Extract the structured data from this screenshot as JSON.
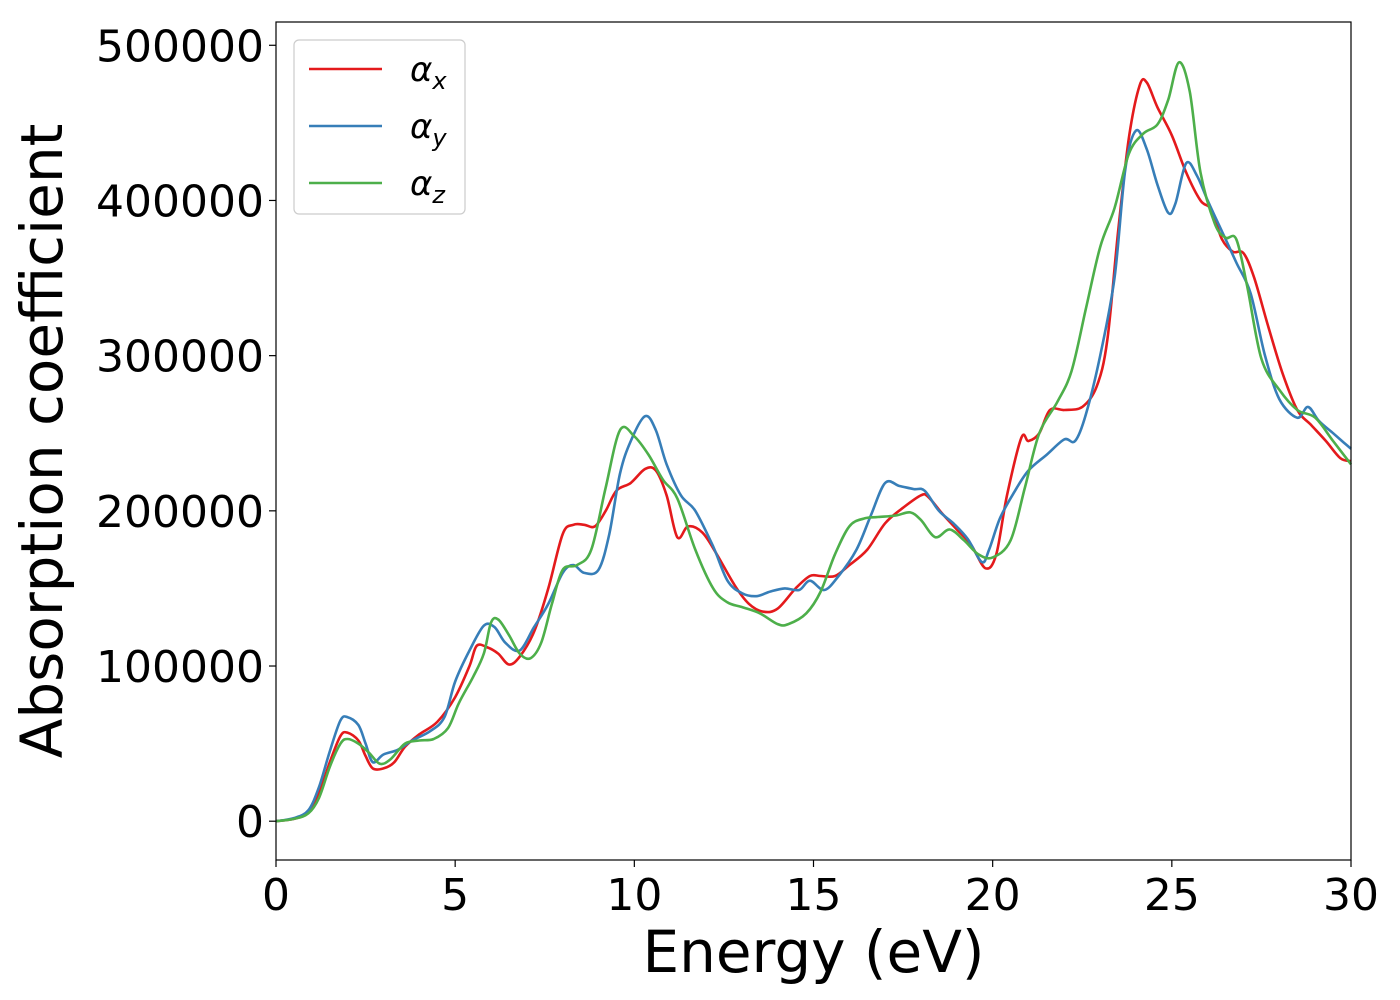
{
  "chart_data": {
    "type": "line",
    "title": "",
    "xlabel": "Energy (eV)",
    "ylabel": "Absorption coefficient",
    "xlim": [
      0,
      30
    ],
    "ylim": [
      -25000,
      515000
    ],
    "xticks": [
      0,
      5,
      10,
      15,
      20,
      25,
      30
    ],
    "yticks": [
      0,
      100000,
      200000,
      300000,
      400000,
      500000
    ],
    "grid": false,
    "legend_position": "top-left",
    "series": [
      {
        "name": "αx",
        "label_base": "α",
        "label_sub": "x",
        "color": "#e41a1c",
        "points": [
          [
            0,
            0
          ],
          [
            0.5,
            1500
          ],
          [
            0.9,
            6000
          ],
          [
            1.2,
            18000
          ],
          [
            1.5,
            38000
          ],
          [
            1.8,
            55000
          ],
          [
            2.0,
            57000
          ],
          [
            2.3,
            52000
          ],
          [
            2.5,
            42000
          ],
          [
            2.7,
            34000
          ],
          [
            3.0,
            34000
          ],
          [
            3.3,
            38000
          ],
          [
            3.6,
            48000
          ],
          [
            4.0,
            56000
          ],
          [
            4.5,
            64000
          ],
          [
            5.0,
            80000
          ],
          [
            5.4,
            100000
          ],
          [
            5.6,
            113000
          ],
          [
            5.9,
            112000
          ],
          [
            6.2,
            108000
          ],
          [
            6.5,
            101000
          ],
          [
            6.8,
            106000
          ],
          [
            7.2,
            122000
          ],
          [
            7.6,
            150000
          ],
          [
            8.0,
            185000
          ],
          [
            8.3,
            191000
          ],
          [
            8.6,
            191000
          ],
          [
            8.9,
            190000
          ],
          [
            9.2,
            200000
          ],
          [
            9.5,
            213000
          ],
          [
            9.9,
            218000
          ],
          [
            10.3,
            227000
          ],
          [
            10.6,
            226000
          ],
          [
            10.9,
            210000
          ],
          [
            11.2,
            183000
          ],
          [
            11.5,
            190000
          ],
          [
            11.9,
            186000
          ],
          [
            12.3,
            172000
          ],
          [
            12.8,
            152000
          ],
          [
            13.2,
            140000
          ],
          [
            13.6,
            135000
          ],
          [
            14.0,
            137000
          ],
          [
            14.5,
            150000
          ],
          [
            14.9,
            158000
          ],
          [
            15.2,
            158000
          ],
          [
            15.6,
            158000
          ],
          [
            16.0,
            165000
          ],
          [
            16.5,
            175000
          ],
          [
            17.0,
            192000
          ],
          [
            17.5,
            202000
          ],
          [
            18.0,
            210000
          ],
          [
            18.2,
            209000
          ],
          [
            18.6,
            198000
          ],
          [
            19.0,
            188000
          ],
          [
            19.4,
            178000
          ],
          [
            19.8,
            163000
          ],
          [
            20.1,
            172000
          ],
          [
            20.4,
            210000
          ],
          [
            20.8,
            247000
          ],
          [
            21.0,
            245000
          ],
          [
            21.3,
            250000
          ],
          [
            21.6,
            265000
          ],
          [
            22.0,
            265000
          ],
          [
            22.5,
            267000
          ],
          [
            22.9,
            280000
          ],
          [
            23.2,
            310000
          ],
          [
            23.5,
            380000
          ],
          [
            23.8,
            440000
          ],
          [
            24.1,
            474000
          ],
          [
            24.3,
            476000
          ],
          [
            24.6,
            460000
          ],
          [
            25.0,
            442000
          ],
          [
            25.4,
            418000
          ],
          [
            25.8,
            400000
          ],
          [
            26.1,
            394000
          ],
          [
            26.4,
            375000
          ],
          [
            26.7,
            367000
          ],
          [
            27.0,
            366000
          ],
          [
            27.3,
            350000
          ],
          [
            27.7,
            318000
          ],
          [
            28.1,
            288000
          ],
          [
            28.5,
            265000
          ],
          [
            28.9,
            255000
          ],
          [
            29.3,
            245000
          ],
          [
            29.7,
            234000
          ],
          [
            30.0,
            232000
          ]
        ]
      },
      {
        "name": "αy",
        "label_base": "α",
        "label_sub": "y",
        "color": "#377eb8",
        "points": [
          [
            0,
            0
          ],
          [
            0.5,
            2000
          ],
          [
            0.9,
            7000
          ],
          [
            1.2,
            22000
          ],
          [
            1.5,
            45000
          ],
          [
            1.8,
            65000
          ],
          [
            2.0,
            67000
          ],
          [
            2.3,
            62000
          ],
          [
            2.5,
            50000
          ],
          [
            2.7,
            38000
          ],
          [
            3.0,
            43000
          ],
          [
            3.4,
            46000
          ],
          [
            3.8,
            52000
          ],
          [
            4.3,
            58000
          ],
          [
            4.7,
            67000
          ],
          [
            5.0,
            90000
          ],
          [
            5.4,
            110000
          ],
          [
            5.8,
            126000
          ],
          [
            6.1,
            125000
          ],
          [
            6.4,
            115000
          ],
          [
            6.8,
            110000
          ],
          [
            7.2,
            125000
          ],
          [
            7.6,
            140000
          ],
          [
            8.0,
            160000
          ],
          [
            8.3,
            165000
          ],
          [
            8.6,
            160000
          ],
          [
            9.0,
            162000
          ],
          [
            9.3,
            185000
          ],
          [
            9.6,
            224000
          ],
          [
            9.9,
            245000
          ],
          [
            10.3,
            261000
          ],
          [
            10.6,
            252000
          ],
          [
            10.9,
            230000
          ],
          [
            11.3,
            210000
          ],
          [
            11.7,
            200000
          ],
          [
            12.2,
            177000
          ],
          [
            12.6,
            155000
          ],
          [
            13.0,
            147000
          ],
          [
            13.4,
            145000
          ],
          [
            13.8,
            148000
          ],
          [
            14.2,
            150000
          ],
          [
            14.6,
            149000
          ],
          [
            14.9,
            155000
          ],
          [
            15.3,
            149000
          ],
          [
            15.7,
            158000
          ],
          [
            16.2,
            175000
          ],
          [
            16.6,
            197000
          ],
          [
            17.0,
            218000
          ],
          [
            17.4,
            216000
          ],
          [
            17.8,
            214000
          ],
          [
            18.1,
            213000
          ],
          [
            18.5,
            200000
          ],
          [
            18.9,
            192000
          ],
          [
            19.3,
            182000
          ],
          [
            19.7,
            167000
          ],
          [
            19.9,
            175000
          ],
          [
            20.2,
            195000
          ],
          [
            20.6,
            212000
          ],
          [
            21.0,
            226000
          ],
          [
            21.5,
            236000
          ],
          [
            22.0,
            246000
          ],
          [
            22.3,
            245000
          ],
          [
            22.6,
            262000
          ],
          [
            23.0,
            300000
          ],
          [
            23.4,
            350000
          ],
          [
            23.7,
            420000
          ],
          [
            24.0,
            445000
          ],
          [
            24.3,
            433000
          ],
          [
            24.6,
            410000
          ],
          [
            24.9,
            392000
          ],
          [
            25.1,
            398000
          ],
          [
            25.4,
            424000
          ],
          [
            25.7,
            416000
          ],
          [
            26.0,
            400000
          ],
          [
            26.4,
            380000
          ],
          [
            26.8,
            360000
          ],
          [
            27.2,
            340000
          ],
          [
            27.6,
            300000
          ],
          [
            28.0,
            272000
          ],
          [
            28.5,
            260000
          ],
          [
            28.8,
            267000
          ],
          [
            29.1,
            258000
          ],
          [
            29.5,
            250000
          ],
          [
            29.8,
            244000
          ],
          [
            30.0,
            240000
          ]
        ]
      },
      {
        "name": "αz",
        "label_base": "α",
        "label_sub": "z",
        "color": "#4daf4a",
        "points": [
          [
            0,
            0
          ],
          [
            0.5,
            1500
          ],
          [
            0.9,
            5000
          ],
          [
            1.2,
            15000
          ],
          [
            1.5,
            35000
          ],
          [
            1.8,
            50000
          ],
          [
            2.0,
            53000
          ],
          [
            2.3,
            50000
          ],
          [
            2.6,
            44000
          ],
          [
            2.9,
            37000
          ],
          [
            3.2,
            40000
          ],
          [
            3.6,
            50000
          ],
          [
            4.0,
            52000
          ],
          [
            4.4,
            53000
          ],
          [
            4.8,
            60000
          ],
          [
            5.1,
            76000
          ],
          [
            5.5,
            93000
          ],
          [
            5.8,
            108000
          ],
          [
            6.0,
            128000
          ],
          [
            6.2,
            130000
          ],
          [
            6.5,
            120000
          ],
          [
            6.8,
            108000
          ],
          [
            7.1,
            105000
          ],
          [
            7.4,
            115000
          ],
          [
            7.7,
            140000
          ],
          [
            8.0,
            162000
          ],
          [
            8.4,
            165000
          ],
          [
            8.8,
            175000
          ],
          [
            9.2,
            215000
          ],
          [
            9.6,
            252000
          ],
          [
            10.0,
            248000
          ],
          [
            10.4,
            236000
          ],
          [
            10.8,
            220000
          ],
          [
            11.2,
            208000
          ],
          [
            11.7,
            175000
          ],
          [
            12.2,
            150000
          ],
          [
            12.6,
            141000
          ],
          [
            13.0,
            138000
          ],
          [
            13.5,
            134000
          ],
          [
            14.0,
            127000
          ],
          [
            14.3,
            127000
          ],
          [
            14.8,
            134000
          ],
          [
            15.2,
            148000
          ],
          [
            15.6,
            172000
          ],
          [
            16.0,
            190000
          ],
          [
            16.4,
            195000
          ],
          [
            16.8,
            196000
          ],
          [
            17.3,
            197000
          ],
          [
            17.7,
            199000
          ],
          [
            18.0,
            194000
          ],
          [
            18.4,
            183000
          ],
          [
            18.8,
            188000
          ],
          [
            19.2,
            181000
          ],
          [
            19.6,
            172000
          ],
          [
            20.0,
            170000
          ],
          [
            20.5,
            181000
          ],
          [
            20.9,
            215000
          ],
          [
            21.3,
            250000
          ],
          [
            21.8,
            270000
          ],
          [
            22.2,
            290000
          ],
          [
            22.6,
            330000
          ],
          [
            23.0,
            370000
          ],
          [
            23.4,
            395000
          ],
          [
            23.8,
            430000
          ],
          [
            24.2,
            443000
          ],
          [
            24.6,
            449000
          ],
          [
            24.9,
            465000
          ],
          [
            25.2,
            489000
          ],
          [
            25.5,
            470000
          ],
          [
            25.8,
            418000
          ],
          [
            26.2,
            385000
          ],
          [
            26.5,
            376000
          ],
          [
            26.8,
            375000
          ],
          [
            27.1,
            345000
          ],
          [
            27.5,
            298000
          ],
          [
            28.0,
            278000
          ],
          [
            28.5,
            265000
          ],
          [
            29.0,
            260000
          ],
          [
            29.5,
            245000
          ],
          [
            30.0,
            230000
          ]
        ]
      }
    ]
  }
}
